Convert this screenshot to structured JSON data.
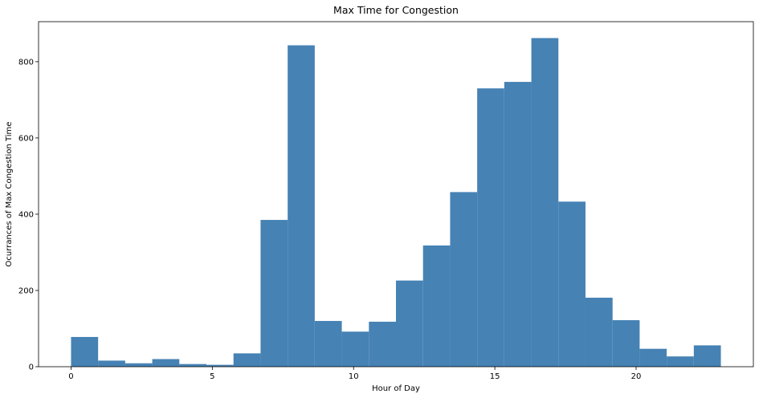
{
  "chart_data": {
    "type": "bar",
    "title": "Max Time for Congestion",
    "xlabel": "Hour of Day",
    "ylabel": "Ocurrances of Max Congestion Time",
    "bins": [
      {
        "x0": 0.0,
        "x1": 0.958,
        "value": 78
      },
      {
        "x0": 0.958,
        "x1": 1.917,
        "value": 16
      },
      {
        "x0": 1.917,
        "x1": 2.875,
        "value": 9
      },
      {
        "x0": 2.875,
        "x1": 3.833,
        "value": 20
      },
      {
        "x0": 3.833,
        "x1": 4.792,
        "value": 7
      },
      {
        "x0": 4.792,
        "x1": 5.75,
        "value": 5
      },
      {
        "x0": 5.75,
        "x1": 6.708,
        "value": 35
      },
      {
        "x0": 6.708,
        "x1": 7.667,
        "value": 385
      },
      {
        "x0": 7.667,
        "x1": 8.625,
        "value": 843
      },
      {
        "x0": 8.625,
        "x1": 9.583,
        "value": 120
      },
      {
        "x0": 9.583,
        "x1": 10.542,
        "value": 92
      },
      {
        "x0": 10.542,
        "x1": 11.5,
        "value": 118
      },
      {
        "x0": 11.5,
        "x1": 12.458,
        "value": 226
      },
      {
        "x0": 12.458,
        "x1": 13.417,
        "value": 318
      },
      {
        "x0": 13.417,
        "x1": 14.375,
        "value": 458
      },
      {
        "x0": 14.375,
        "x1": 15.333,
        "value": 730
      },
      {
        "x0": 15.333,
        "x1": 16.292,
        "value": 747
      },
      {
        "x0": 16.292,
        "x1": 17.25,
        "value": 862
      },
      {
        "x0": 17.25,
        "x1": 18.208,
        "value": 433
      },
      {
        "x0": 18.208,
        "x1": 19.167,
        "value": 181
      },
      {
        "x0": 19.167,
        "x1": 20.125,
        "value": 122
      },
      {
        "x0": 20.125,
        "x1": 21.083,
        "value": 47
      },
      {
        "x0": 21.083,
        "x1": 22.042,
        "value": 27
      },
      {
        "x0": 22.042,
        "x1": 23.0,
        "value": 56
      }
    ],
    "xlim": [
      -1.15,
      24.15
    ],
    "ylim": [
      0,
      905
    ],
    "xticks": [
      0,
      5,
      10,
      15,
      20
    ],
    "yticks": [
      0,
      200,
      400,
      600,
      800
    ],
    "xtick_labels": [
      "0",
      "5",
      "10",
      "15",
      "20"
    ],
    "ytick_labels": [
      "0",
      "200",
      "400",
      "600",
      "800"
    ],
    "bar_color": "#4682b4",
    "grid": false,
    "legend": false
  }
}
